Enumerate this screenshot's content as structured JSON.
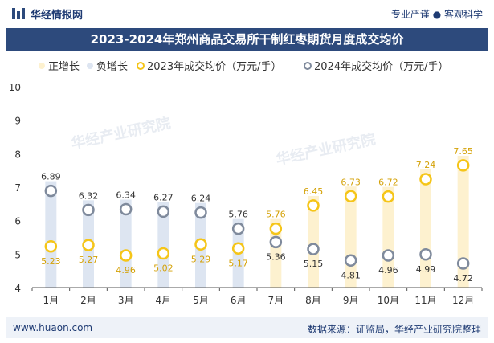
{
  "header": {
    "brand": "华经情报网",
    "slogan": "专业严谨 ● 客观科学",
    "title": "2023-2024年郑州商品交易所干制红枣期货月度成交均价"
  },
  "footer": {
    "url": "www.huaon.com",
    "source": "数据来源：证监局，华经产业研究院整理"
  },
  "colors": {
    "title_bg": "#2d4a7c",
    "positive_bar": "#fdf1cf",
    "negative_bar": "#dde5f1",
    "series_2023": "#f5c518",
    "series_2024": "#7f8a9c",
    "text": "#333333"
  },
  "chart_data": {
    "type": "bar",
    "categories": [
      "1月",
      "2月",
      "3月",
      "4月",
      "5月",
      "6月",
      "7月",
      "8月",
      "9月",
      "10月",
      "11月",
      "12月"
    ],
    "ylim": [
      4,
      10
    ],
    "yticks": [
      4,
      5,
      6,
      7,
      8,
      9,
      10
    ],
    "grid": false,
    "legend_position": "top",
    "legend": [
      "正增长",
      "负增长",
      "2023年成交均价（万元/手）",
      "2024年成交均价（万元/手）"
    ],
    "series": [
      {
        "name": "2023年成交均价（万元/手）",
        "values": [
          5.23,
          5.27,
          4.96,
          5.02,
          5.29,
          5.17,
          5.76,
          6.45,
          6.73,
          6.72,
          7.24,
          7.65
        ]
      },
      {
        "name": "2024年成交均价（万元/手）",
        "values": [
          6.89,
          6.32,
          6.34,
          6.27,
          6.24,
          5.76,
          5.36,
          5.15,
          4.81,
          4.96,
          4.99,
          4.72
        ]
      }
    ],
    "growth_bars": [
      "负增长",
      "负增长",
      "负增长",
      "负增长",
      "负增长",
      "负增长",
      "正增长",
      "正增长",
      "正增长",
      "正增长",
      "正增长",
      "正增长"
    ]
  }
}
